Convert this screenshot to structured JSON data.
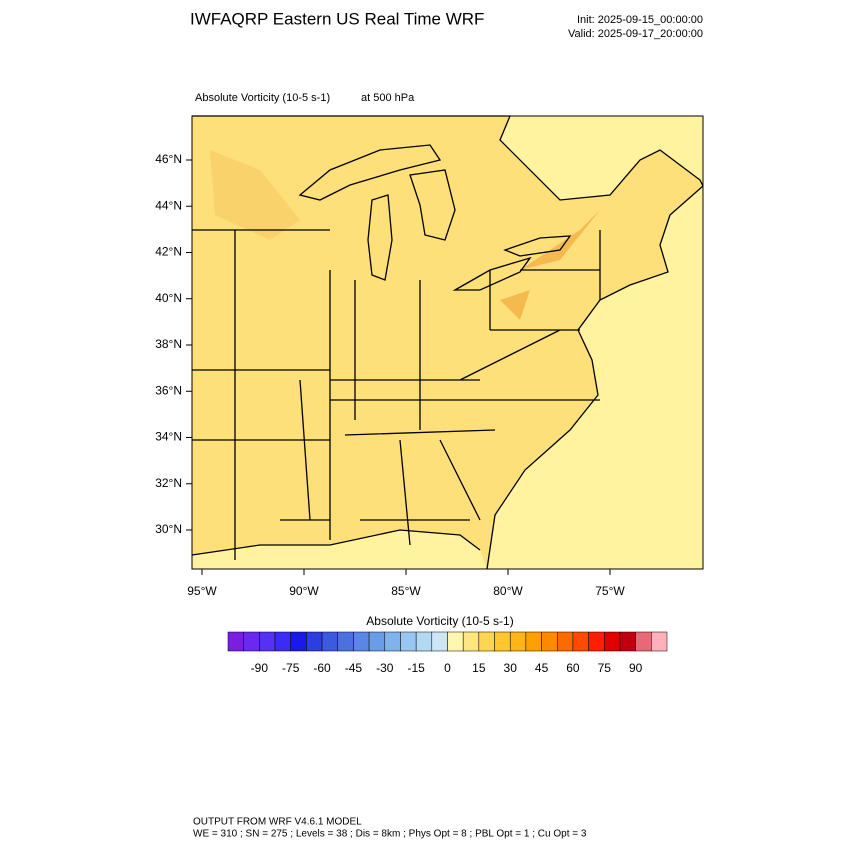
{
  "header": {
    "title": "IWFAQRP Eastern US Real Time WRF",
    "init": "Init: 2025-09-15_00:00:00",
    "valid": "Valid: 2025-09-17_20:00:00"
  },
  "map": {
    "field": "Absolute Vorticity   (10-5 s-1)",
    "level": "at   500 hPa",
    "lat_labels": [
      "46°N",
      "44°N",
      "42°N",
      "40°N",
      "38°N",
      "36°N",
      "34°N",
      "32°N",
      "30°N"
    ],
    "lon_labels": [
      "95°W",
      "90°W",
      "85°W",
      "80°W",
      "75°W"
    ]
  },
  "colorbar": {
    "title": "Absolute Vorticity  (10-5 s-1)",
    "range": [
      -105,
      105
    ],
    "colors": [
      "#7a1fe0",
      "#6a28f0",
      "#5530f5",
      "#3a2cf5",
      "#1a1ae8",
      "#2c3ee0",
      "#3c5ae0",
      "#4c70e0",
      "#5a86e6",
      "#6a9ce8",
      "#80b2ec",
      "#98c6f0",
      "#b2d8f4",
      "#cce6f6",
      "#fff6b0",
      "#ffe680",
      "#ffd650",
      "#ffc630",
      "#ffb418",
      "#ffa000",
      "#ff8a00",
      "#ff6a00",
      "#ff4a00",
      "#ff1e00",
      "#e00000",
      "#c00010",
      "#e86878",
      "#ffb0b8"
    ],
    "ticks": [
      -90,
      -75,
      -60,
      -45,
      -30,
      -15,
      0,
      15,
      30,
      45,
      60,
      75,
      90
    ]
  },
  "footer": {
    "line1": "OUTPUT FROM WRF V4.6.1 MODEL",
    "line2": "WE = 310 ; SN = 275 ; Levels = 38 ; Dis = 8km ; Phys Opt = 8 ; PBL Opt = 1 ; Cu Opt = 3"
  }
}
